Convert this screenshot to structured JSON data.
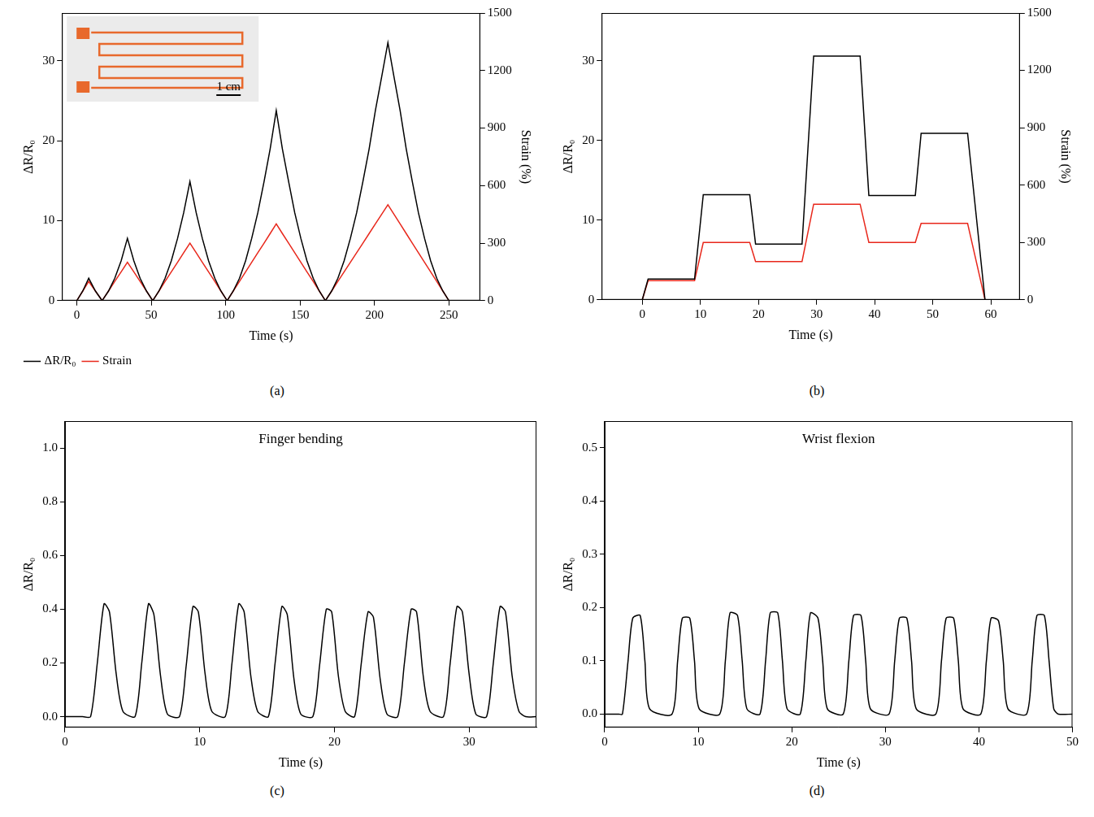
{
  "chart_data": [
    {
      "type": "line",
      "panel_label": "(a)",
      "xlabel": "Time (s)",
      "ylabel": "ΔR/R₀",
      "y2label": "Strain (%)",
      "annotations": [
        "1 cm"
      ],
      "legend": "bottom",
      "grid": false,
      "xlim": [
        -10,
        271
      ],
      "xticks": [
        0,
        50,
        100,
        150,
        200,
        250
      ],
      "ylim": [
        0,
        36
      ],
      "yticks": [
        0,
        10,
        20,
        30
      ],
      "y2lim": [
        0,
        1500
      ],
      "y2ticks": [
        0,
        300,
        600,
        900,
        1200,
        1500
      ],
      "x": [
        0,
        4,
        8,
        12.5,
        17,
        21.3,
        25.5,
        29.8,
        34,
        38.3,
        42.5,
        46.8,
        51,
        55.2,
        59.3,
        63.5,
        67.7,
        71.8,
        76,
        80.2,
        84.3,
        88.5,
        92.7,
        96.8,
        101,
        105.1,
        109.3,
        113.4,
        117.5,
        121.6,
        125.8,
        129.9,
        134,
        138.1,
        142.3,
        146.4,
        150.5,
        154.6,
        158.8,
        162.9,
        167,
        171.2,
        175.4,
        179.6,
        183.8,
        188,
        192.2,
        196.4,
        200.6,
        204.8,
        209,
        213.1,
        217.2,
        221.3,
        225.4,
        229.5,
        233.6,
        237.7,
        241.8,
        245.9,
        250
      ],
      "series": [
        {
          "name": "ΔR/R₀",
          "color": "#000000",
          "axis": "y",
          "values": [
            0,
            1.2,
            2.8,
            1.2,
            0,
            1.2,
            2.8,
            5,
            7.8,
            5,
            2.8,
            1.2,
            0,
            1.2,
            2.8,
            5,
            7.8,
            11,
            14.9,
            11,
            7.8,
            5,
            2.8,
            1.2,
            0,
            1.2,
            2.8,
            5,
            7.8,
            11,
            14.9,
            19,
            23.8,
            19,
            14.9,
            11,
            7.8,
            5,
            2.8,
            1.2,
            0,
            1.2,
            2.8,
            5,
            7.8,
            11,
            14.9,
            19,
            23.8,
            28,
            32.3,
            28,
            23.8,
            19,
            14.9,
            11,
            7.8,
            5,
            2.8,
            1.2,
            0
          ]
        },
        {
          "name": "Strain",
          "color": "#e8271b",
          "axis": "y2",
          "values": [
            0,
            50,
            100,
            50,
            0,
            50,
            100,
            150,
            200,
            150,
            100,
            50,
            0,
            50,
            100,
            150,
            200,
            250,
            300,
            250,
            200,
            150,
            100,
            50,
            0,
            50,
            100,
            150,
            200,
            250,
            300,
            350,
            400,
            350,
            300,
            250,
            200,
            150,
            100,
            50,
            0,
            50,
            100,
            150,
            200,
            250,
            300,
            350,
            400,
            450,
            500,
            450,
            400,
            350,
            300,
            250,
            200,
            150,
            100,
            50,
            0
          ]
        }
      ]
    },
    {
      "type": "line",
      "panel_label": "(b)",
      "xlabel": "Time (s)",
      "ylabel": "ΔR/R₀",
      "y2label": "Strain (%)",
      "grid": false,
      "xlim": [
        -7,
        65
      ],
      "xticks": [
        0,
        10,
        20,
        30,
        40,
        50,
        60
      ],
      "ylim": [
        0,
        36
      ],
      "yticks": [
        0,
        10,
        20,
        30
      ],
      "y2lim": [
        0,
        1500
      ],
      "y2ticks": [
        0,
        300,
        600,
        900,
        1200,
        1500
      ],
      "x": [
        0,
        1,
        9,
        10.5,
        18.5,
        19.5,
        27.5,
        29.5,
        37.5,
        39,
        47,
        48,
        56,
        59
      ],
      "series": [
        {
          "name": "ΔR/R₀",
          "color": "#000000",
          "axis": "y",
          "values": [
            0,
            2.6,
            2.6,
            13.2,
            13.2,
            7,
            7,
            30.6,
            30.6,
            13.1,
            13.1,
            20.9,
            20.9,
            0
          ]
        },
        {
          "name": "Strain",
          "color": "#e8271b",
          "axis": "y2",
          "values": [
            0,
            100,
            100,
            300,
            300,
            200,
            200,
            500,
            500,
            300,
            300,
            400,
            400,
            0
          ]
        }
      ]
    },
    {
      "type": "line",
      "panel_label": "(c)",
      "title": "Finger bending",
      "xlabel": "Time (s)",
      "ylabel": "ΔR/R₀",
      "grid": false,
      "color": "#000000",
      "xlim": [
        0,
        35
      ],
      "xticks": [
        0,
        10,
        20,
        30
      ],
      "ylim": [
        -0.04,
        1.1
      ],
      "yticks": [
        {
          "value": 0,
          "label": "0.0"
        },
        {
          "value": 0.2,
          "label": "0.2"
        },
        {
          "value": 0.4,
          "label": "0.4"
        },
        {
          "value": 0.6,
          "label": "0.6"
        },
        {
          "value": 0.8,
          "label": "0.8"
        },
        {
          "value": 1,
          "label": "1.0"
        }
      ],
      "x": [
        0,
        1.3,
        1.9,
        2.4,
        2.9,
        3.3,
        3.8,
        4.3,
        5.2,
        5.7,
        6.2,
        6.6,
        7.1,
        7.6,
        8.5,
        9,
        9.5,
        9.9,
        10.4,
        10.9,
        11.9,
        12.4,
        12.9,
        13.3,
        13.8,
        14.3,
        15.1,
        15.6,
        16.1,
        16.5,
        17,
        17.5,
        18.4,
        18.9,
        19.4,
        19.8,
        20.3,
        20.8,
        21.5,
        22,
        22.5,
        22.9,
        23.4,
        23.9,
        24.7,
        25.2,
        25.7,
        26.1,
        26.6,
        27.1,
        28.1,
        28.6,
        29.1,
        29.5,
        30,
        30.5,
        31.3,
        31.8,
        32.3,
        32.7,
        33.2,
        33.7,
        34.2,
        35
      ],
      "values": [
        0,
        0,
        0,
        0.2,
        0.42,
        0.39,
        0.16,
        0.02,
        0,
        0.2,
        0.42,
        0.38,
        0.15,
        0.01,
        0,
        0.19,
        0.41,
        0.39,
        0.16,
        0.02,
        0,
        0.2,
        0.42,
        0.39,
        0.15,
        0.02,
        0,
        0.2,
        0.41,
        0.38,
        0.14,
        0.01,
        0,
        0.19,
        0.4,
        0.39,
        0.15,
        0.02,
        0,
        0.2,
        0.39,
        0.37,
        0.14,
        0.01,
        0,
        0.2,
        0.4,
        0.39,
        0.15,
        0.02,
        0,
        0.2,
        0.41,
        0.39,
        0.16,
        0.01,
        0,
        0.2,
        0.41,
        0.39,
        0.15,
        0.02,
        0,
        0
      ]
    },
    {
      "type": "line",
      "panel_label": "(d)",
      "title": "Wrist flexion",
      "xlabel": "Time (s)",
      "ylabel": "ΔR/R₀",
      "grid": false,
      "color": "#000000",
      "xlim": [
        0,
        50
      ],
      "xticks": [
        0,
        10,
        20,
        30,
        40,
        50
      ],
      "ylim": [
        -0.025,
        0.55
      ],
      "yticks": [
        {
          "value": 0,
          "label": "0.0"
        },
        {
          "value": 0.1,
          "label": "0.1"
        },
        {
          "value": 0.2,
          "label": "0.2"
        },
        {
          "value": 0.3,
          "label": "0.3"
        },
        {
          "value": 0.4,
          "label": "0.4"
        },
        {
          "value": 0.5,
          "label": "0.5"
        }
      ],
      "x": [
        0,
        1.5,
        1.9,
        2.5,
        3,
        3.8,
        4.3,
        4.8,
        7.2,
        7.8,
        8.3,
        9.1,
        9.6,
        10.1,
        12.3,
        12.9,
        13.4,
        14.2,
        14.7,
        15.2,
        16.6,
        17.2,
        17.7,
        18.5,
        19,
        19.5,
        20.9,
        21.5,
        22,
        22.8,
        23.3,
        23.8,
        25.5,
        26.1,
        26.6,
        27.4,
        27.9,
        28.4,
        30.4,
        31,
        31.5,
        32.3,
        32.8,
        33.3,
        35.4,
        36,
        36.5,
        37.3,
        37.8,
        38.3,
        40.2,
        40.8,
        41.3,
        42.1,
        42.6,
        43.1,
        45.1,
        45.7,
        46.2,
        47,
        47.5,
        48,
        48.5,
        50
      ],
      "values": [
        0,
        0,
        0,
        0.1,
        0.18,
        0.185,
        0.1,
        0.01,
        0,
        0.1,
        0.18,
        0.18,
        0.1,
        0.01,
        0,
        0.1,
        0.19,
        0.185,
        0.1,
        0.01,
        0,
        0.1,
        0.19,
        0.19,
        0.1,
        0.01,
        0,
        0.1,
        0.19,
        0.18,
        0.1,
        0.01,
        0,
        0.1,
        0.185,
        0.185,
        0.1,
        0.01,
        0,
        0.1,
        0.18,
        0.18,
        0.1,
        0.01,
        0,
        0.1,
        0.18,
        0.18,
        0.1,
        0.01,
        0,
        0.1,
        0.18,
        0.175,
        0.1,
        0.01,
        0,
        0.1,
        0.185,
        0.185,
        0.1,
        0.01,
        0,
        0
      ]
    }
  ]
}
